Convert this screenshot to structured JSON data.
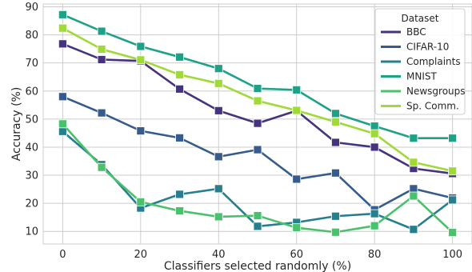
{
  "chart_data": {
    "type": "line",
    "title": "",
    "xlabel": "Classifiers selected randomly (%)",
    "ylabel": "Accuracy (%)",
    "xlim": [
      -5,
      105
    ],
    "ylim": [
      5.5,
      91
    ],
    "x": [
      0,
      10,
      20,
      30,
      40,
      50,
      60,
      70,
      80,
      90,
      100
    ],
    "xticks": [
      0,
      20,
      40,
      60,
      80,
      100
    ],
    "yticks": [
      10,
      20,
      30,
      40,
      50,
      60,
      70,
      80,
      90
    ],
    "grid": true,
    "marker": "square",
    "legend": {
      "title": "Dataset",
      "position": "top-right"
    },
    "series": [
      {
        "name": "BBC",
        "color": "#46337e",
        "values": [
          76.8,
          71.2,
          70.7,
          60.7,
          53.0,
          48.5,
          53.0,
          41.7,
          40.0,
          32.4,
          30.6
        ]
      },
      {
        "name": "CIFAR-10",
        "color": "#365c8d",
        "values": [
          58.0,
          52.2,
          45.8,
          43.3,
          36.6,
          39.1,
          28.6,
          30.8,
          17.7,
          25.2,
          21.9
        ]
      },
      {
        "name": "Complaints",
        "color": "#277f8e",
        "values": [
          45.6,
          33.8,
          18.3,
          23.2,
          25.2,
          11.8,
          13.2,
          15.4,
          16.3,
          10.7,
          21.2
        ]
      },
      {
        "name": "MNIST",
        "color": "#1fa187",
        "values": [
          87.2,
          81.3,
          75.9,
          72.1,
          68.0,
          60.9,
          60.4,
          52.0,
          47.5,
          43.2,
          43.2
        ]
      },
      {
        "name": "Newsgroups",
        "color": "#4ac16d",
        "values": [
          48.3,
          32.8,
          20.5,
          17.3,
          15.2,
          15.6,
          11.3,
          9.7,
          12.0,
          22.6,
          9.6
        ]
      },
      {
        "name": "Sp. Comm.",
        "color": "#a0da39",
        "values": [
          82.4,
          74.9,
          71.1,
          65.8,
          62.7,
          56.5,
          53.1,
          49.0,
          44.8,
          34.6,
          31.5
        ]
      }
    ]
  }
}
